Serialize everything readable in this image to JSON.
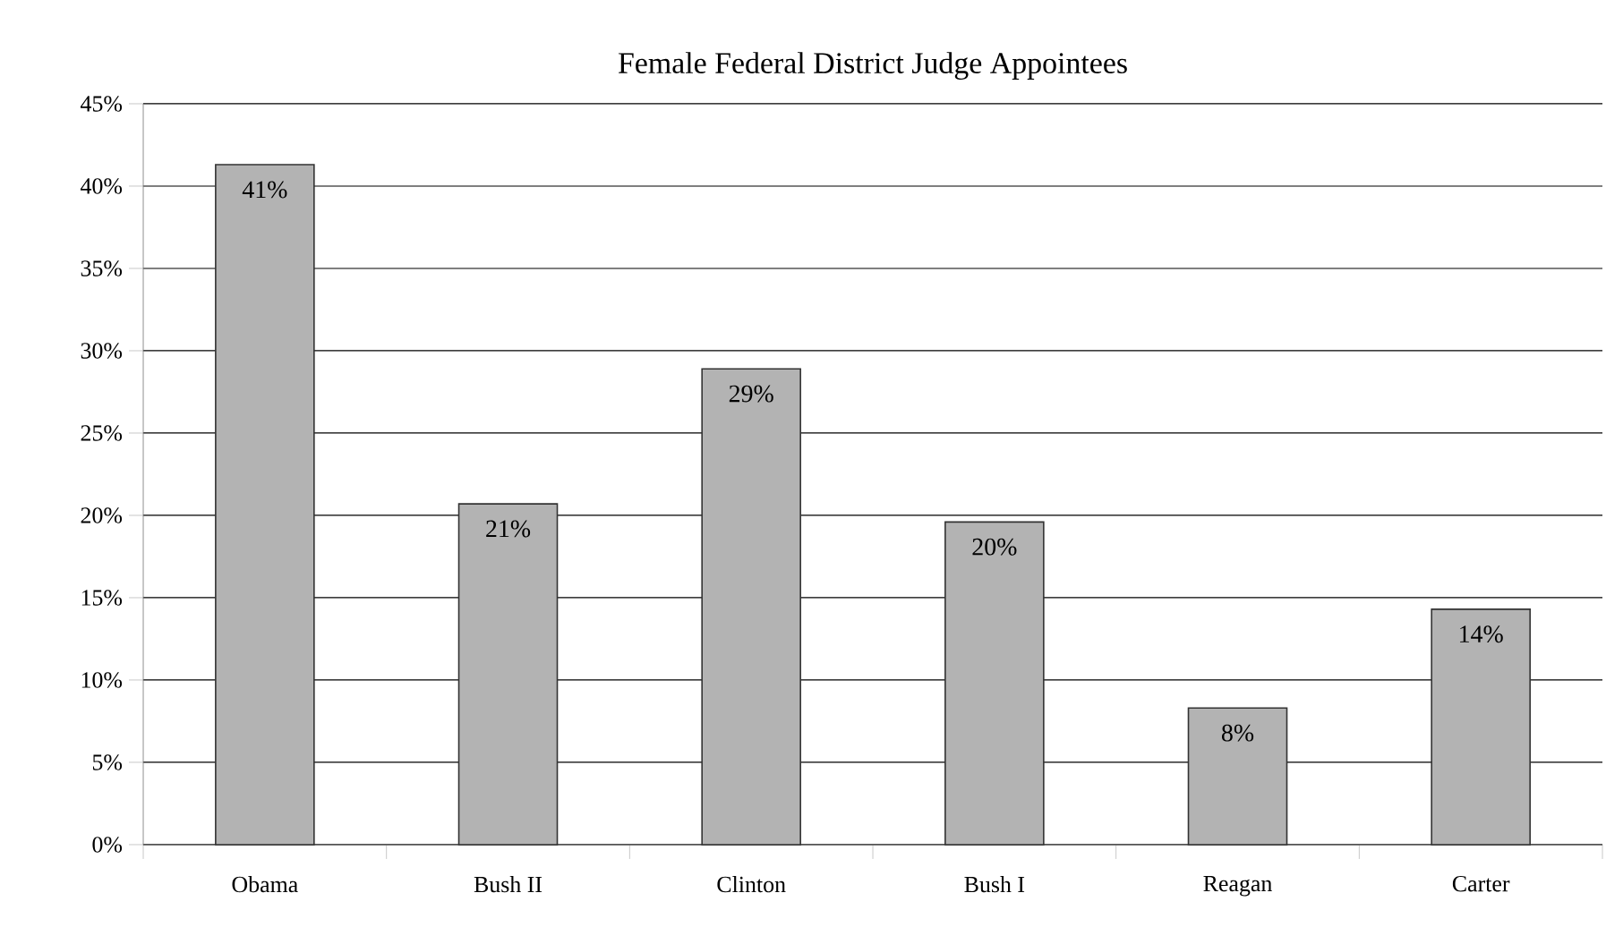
{
  "chart_data": {
    "type": "bar",
    "title": "Female Federal District Judge Appointees",
    "categories": [
      "Obama",
      "Bush II",
      "Clinton",
      "Bush I",
      "Reagan",
      "Carter"
    ],
    "values": [
      41.3,
      20.7,
      28.9,
      19.6,
      8.3,
      14.3
    ],
    "value_labels": [
      "41%",
      "21%",
      "29%",
      "20%",
      "8%",
      "14%"
    ],
    "color": "#b3b3b3",
    "ylim": [
      0,
      45
    ],
    "yticks": [
      {
        "value": 0,
        "label": "0%"
      },
      {
        "value": 5,
        "label": "5%"
      },
      {
        "value": 10,
        "label": "10%"
      },
      {
        "value": 15,
        "label": "15%"
      },
      {
        "value": 20,
        "label": "20%"
      },
      {
        "value": 25,
        "label": "25%"
      },
      {
        "value": 30,
        "label": "30%"
      },
      {
        "value": 35,
        "label": "35%"
      },
      {
        "value": 40,
        "label": "40%"
      },
      {
        "value": 45,
        "label": "45%"
      }
    ],
    "grid": "y"
  }
}
